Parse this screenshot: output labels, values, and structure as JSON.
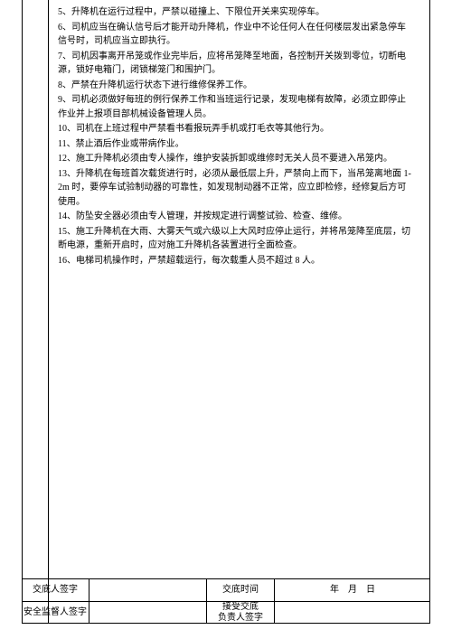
{
  "rules": [
    "5、升降机在运行过程中，严禁以碰撞上、下限位开关来实现停车。",
    "6、司机应当在确认信号后才能开动升降机，作业中不论任何人在任何楼层发出紧急停车信号时，司机应当立即执行。",
    "7、司机因事离开吊笼或作业完毕后，应将吊笼降至地面，各控制开关拨到零位，切断电源，锁好电箱门，闭锁梯笼门和围护门。",
    "8、严禁在升降机运行状态下进行维修保养工作。",
    "9、司机必须做好每班的例行保养工作和当班运行记录，发现电梯有故障，必须立即停止作业并上报项目部机械设备管理人员。",
    "10、司机在上班过程中严禁看书看报玩弄手机或打毛衣等其他行为。",
    "11、禁止酒后作业或带病作业。",
    "12、施工升降机必须由专人操作，维护安装拆卸或维修时无关人员不要进入吊笼内。",
    "13、升降机在每班首次载货进行时，必须从最低层上升，严禁向上而下，当吊笼离地面 1-2m 时，要停车试验制动器的可靠性，如发现制动器不正常，应立即检修，经修复后方可使用。",
    "14、防坠安全器必须由专人管理，并按规定进行调整试验、检查、维修。",
    "15、施工升降机在大雨、大雾天气或六级以上大风时应停止运行，并将吊笼降至底层，切断电源，重新开启时，应对施工升降机各装置进行全面检查。",
    "16、电梯司机操作时，严禁超载运行，每次载重人员不超过 8 人。"
  ],
  "sig": {
    "row1": {
      "label1": "交底人签字",
      "val1": "",
      "label2": "交底时间",
      "val2": "年　月　日"
    },
    "row2": {
      "label1": "安全监督人签字",
      "val1": "",
      "label2": "接受交底\n负责人签字",
      "val2": ""
    }
  },
  "style": {
    "font_size_body": 10,
    "line_height": 1.55,
    "border_color": "#000000",
    "bg_color": "#ffffff",
    "text_color": "#000000"
  }
}
